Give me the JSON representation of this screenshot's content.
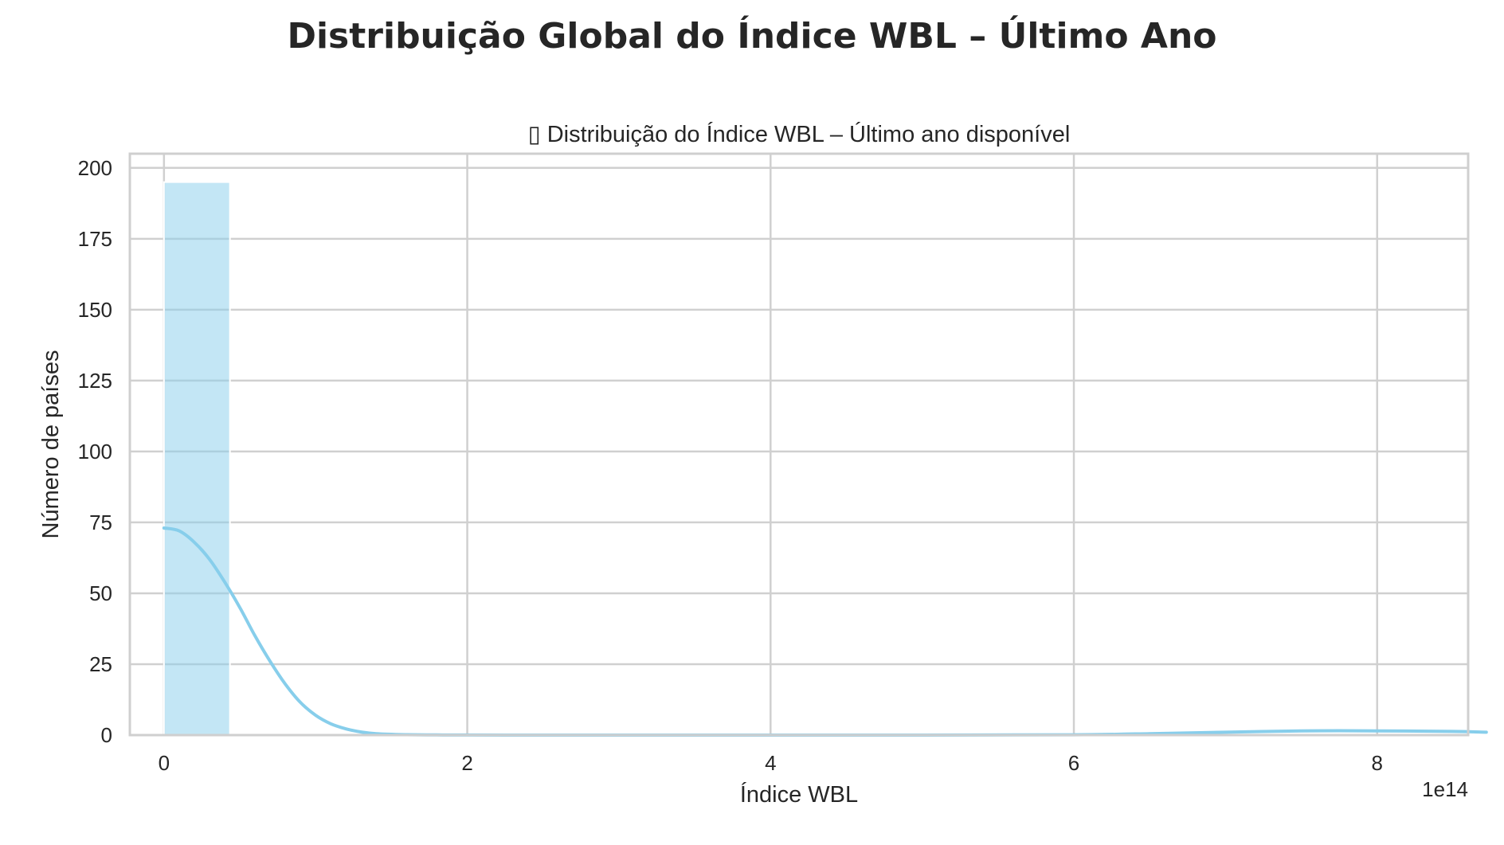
{
  "figure": {
    "suptitle": "Distribuição Global do Índice WBL – Último Ano"
  },
  "chart_data": {
    "type": "histogram",
    "title": "▯ Distribuição do Índice WBL – Último ano disponível",
    "xlabel": "Índice WBL",
    "ylabel": "Número de países",
    "x_offset_text": "1e14",
    "x_multiplier": 100000000000000.0,
    "xlim": [
      -0.225,
      8.6
    ],
    "ylim": [
      0,
      205
    ],
    "x_ticks": [
      0,
      2,
      4,
      6,
      8
    ],
    "x_tick_labels": [
      "0",
      "2",
      "4",
      "6",
      "8"
    ],
    "y_ticks": [
      0,
      25,
      50,
      75,
      100,
      125,
      150,
      175,
      200
    ],
    "y_tick_labels": [
      "0",
      "25",
      "50",
      "75",
      "100",
      "125",
      "150",
      "175",
      "200"
    ],
    "grid": true,
    "bar_color": "#87ceeb",
    "kde_color": "#87ceeb",
    "bins": [
      {
        "x_start": 0,
        "x_end": 0.435,
        "count": 195
      }
    ],
    "kde": {
      "x": [
        0,
        0.1,
        0.2,
        0.3,
        0.4,
        0.5,
        0.6,
        0.7,
        0.8,
        0.9,
        1.0,
        1.1,
        1.2,
        1.3,
        1.4,
        1.6,
        1.8,
        2.0,
        3.0,
        4.0,
        5.0,
        6.0,
        6.5,
        7.0,
        7.5,
        8.0,
        8.5,
        8.72
      ],
      "y": [
        73,
        72,
        68,
        62,
        54,
        45,
        35,
        26,
        18,
        11.5,
        7,
        4,
        2.2,
        1.1,
        0.5,
        0.15,
        0.05,
        0.02,
        0,
        0,
        0,
        0.1,
        0.5,
        1.0,
        1.5,
        1.5,
        1.3,
        1.0
      ]
    }
  }
}
